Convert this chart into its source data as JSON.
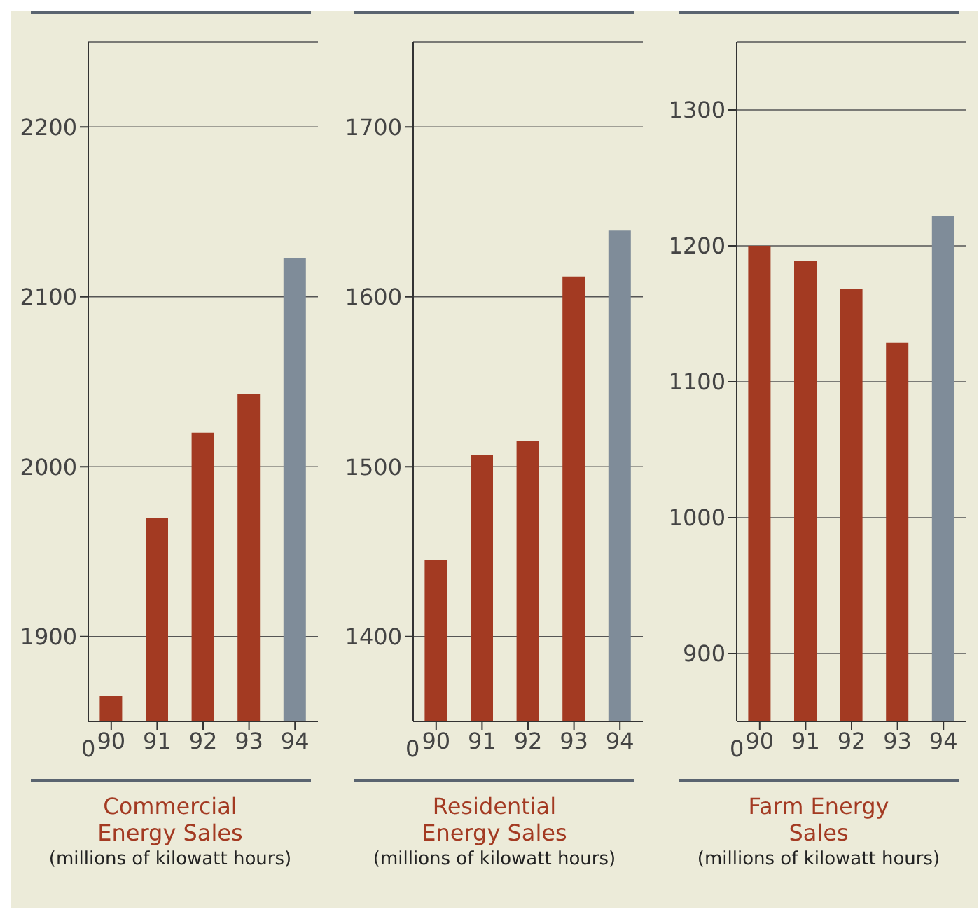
{
  "chart_data": [
    {
      "type": "bar",
      "title": "Commercial Energy Sales",
      "subtitle": "(millions of kilowatt hours)",
      "categories": [
        "90",
        "91",
        "92",
        "93",
        "94"
      ],
      "values": [
        1865,
        1970,
        2020,
        2043,
        2123
      ],
      "colors": [
        "#a33a22",
        "#a33a22",
        "#a33a22",
        "#a33a22",
        "#7f8c99"
      ],
      "ylim": [
        1850,
        2250
      ],
      "yticks": [
        1900,
        2000,
        2100,
        2200
      ],
      "annotations": [
        "0"
      ],
      "grid": "y"
    },
    {
      "type": "bar",
      "title": "Residential Energy Sales",
      "subtitle": "(millions of kilowatt hours)",
      "categories": [
        "90",
        "91",
        "92",
        "93",
        "94"
      ],
      "values": [
        1445,
        1507,
        1515,
        1612,
        1639
      ],
      "colors": [
        "#a33a22",
        "#a33a22",
        "#a33a22",
        "#a33a22",
        "#7f8c99"
      ],
      "ylim": [
        1350,
        1750
      ],
      "yticks": [
        1400,
        1500,
        1600,
        1700
      ],
      "annotations": [
        "0"
      ],
      "grid": "y"
    },
    {
      "type": "bar",
      "title": "Farm Energy Sales",
      "subtitle": "(millions of kilowatt hours)",
      "categories": [
        "90",
        "91",
        "92",
        "93",
        "94"
      ],
      "values": [
        1200,
        1189,
        1168,
        1129,
        1222
      ],
      "colors": [
        "#a33a22",
        "#a33a22",
        "#a33a22",
        "#a33a22",
        "#7f8c99"
      ],
      "ylim": [
        850,
        1350
      ],
      "yticks": [
        900,
        1000,
        1100,
        1200,
        1300
      ],
      "annotations": [
        "0"
      ],
      "grid": "y"
    }
  ]
}
